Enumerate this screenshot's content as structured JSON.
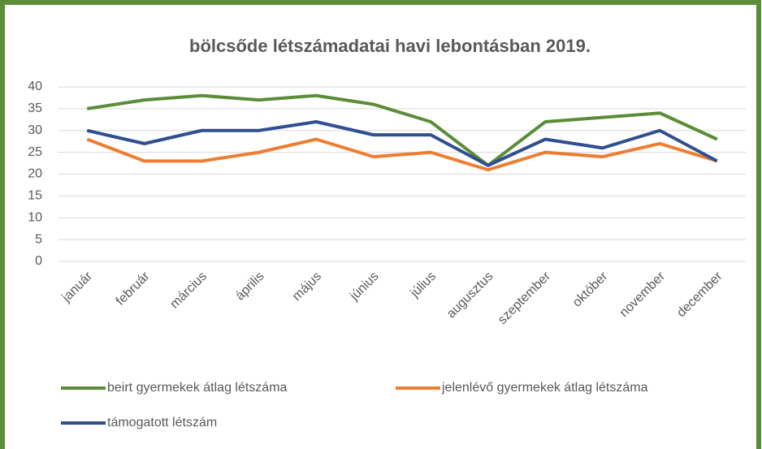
{
  "chart_data": {
    "type": "line",
    "title": "bölcsőde létszámadatai havi lebontásban 2019.",
    "categories": [
      "január",
      "február",
      "március",
      "április",
      "május",
      "június",
      "július",
      "augusztus",
      "szeptember",
      "október",
      "november",
      "december"
    ],
    "series": [
      {
        "name": "beirt gyermekek átlag létszáma",
        "color": "#5b8c37",
        "values": [
          35,
          37,
          38,
          37,
          38,
          36,
          32,
          22,
          32,
          33,
          34,
          28
        ]
      },
      {
        "name": "jelenlévő gyermekek átlag létszáma",
        "color": "#ed7d31",
        "values": [
          28,
          23,
          23,
          25,
          28,
          24,
          25,
          21,
          25,
          24,
          27,
          23
        ]
      },
      {
        "name": "támogatott létszám",
        "color": "#2f4f8f",
        "values": [
          30,
          27,
          30,
          30,
          32,
          29,
          29,
          22,
          28,
          26,
          30,
          23
        ]
      }
    ],
    "ylim": [
      0,
      40
    ],
    "yticks": [
      0,
      5,
      10,
      15,
      20,
      25,
      30,
      35,
      40
    ],
    "grid": true,
    "legend": "bottom"
  }
}
